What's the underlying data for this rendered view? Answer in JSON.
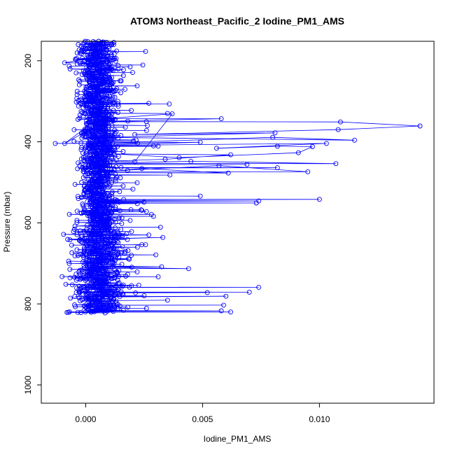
{
  "chart_data": {
    "type": "scatter",
    "title": "ATOM3 Northeast_Pacific_2 Iodine_PM1_AMS",
    "xlabel": "Iodine_PM1_AMS",
    "ylabel": "Pressure (mbar)",
    "xlim": [
      -0.0019,
      0.0149
    ],
    "ylim": [
      1045,
      152
    ],
    "y_reversed": true,
    "x_ticks": [
      0.0,
      0.005,
      0.01
    ],
    "x_tick_labels": [
      "0.000",
      "0.005",
      "0.010"
    ],
    "y_ticks": [
      200,
      400,
      600,
      800,
      1000
    ],
    "y_tick_labels": [
      "200",
      "400",
      "600",
      "800",
      "1000"
    ],
    "grid": false,
    "marker": "open-circle",
    "connected": true,
    "colors": {
      "series": "#0000ff",
      "axis": "#000000"
    },
    "series": [
      {
        "x": [
          0.0001,
          0.0003,
          -0.0009,
          0.0006,
          0.0012,
          0.0019,
          0.0002,
          0.0008,
          0.0003,
          0.0022,
          0.0015,
          0.0004,
          -0.0004,
          0.0027,
          0.0008,
          0.0035,
          0.0002,
          0.0009,
          0.0018,
          0.0001,
          0.0004,
          0.0026,
          0.0011,
          -0.0005,
          0.0007,
          0.0029,
          0.0003,
          0.0016,
          0.0006,
          0.0021,
          0.0037,
          0.0005,
          -0.0009,
          0.001,
          0.0058,
          0.0003,
          0.0109,
          0.0143,
          0.0108,
          0.0021,
          0.0081,
          0.0007,
          0.0115,
          0.008,
          0.0004,
          -0.0013,
          0.0049,
          0.0002,
          0.0103,
          0.0056,
          0.0082,
          0.0097,
          0.0091,
          0.004,
          0.0012,
          0.0062,
          0.0034,
          0.0107,
          0.0045,
          0.0069,
          0.0082,
          0.0095,
          0.0057,
          0.0061,
          0.0024,
          0.0036,
          0.0005,
          0.0022,
          0.0016,
          0.0007,
          0.0049,
          0.01,
          0.0074,
          0.0073,
          0.0004,
          0.0024,
          0.0011,
          -0.0007,
          0.0029,
          0.0003,
          0.0019,
          0.0009,
          0.0032,
          0.0006,
          0.0027,
          0.0002,
          0.0033,
          0.0012,
          -0.0006,
          0.0024,
          0.0008,
          0.0017,
          0.0004,
          0.003,
          0.0011,
          0.0044,
          0.0003,
          0.0022,
          0.0009,
          0.0031,
          0.0005,
          0.0074,
          0.0014,
          0.007,
          0.0007,
          0.0052,
          0.0016,
          0.0025,
          0.0004,
          0.006,
          0.0012,
          0.0035,
          0.0006,
          0.0059,
          0.0018,
          0.0026,
          0.001,
          0.0058,
          0.0003,
          0.0062,
          -0.0008
        ],
        "y": [
          150,
          162,
          205,
          190,
          196,
          215,
          232,
          241,
          258,
          262,
          279,
          291,
          302,
          305,
          318,
          330,
          338,
          342,
          349,
          355,
          368,
          372,
          385,
          399,
          402,
          410,
          415,
          424,
          436,
          449,
          331,
          344,
          404,
          343,
          343,
          350,
          351,
          361,
          370,
          382,
          378,
          389,
          396,
          389,
          404,
          404,
          401,
          409,
          404,
          416,
          411,
          412,
          427,
          439,
          430,
          432,
          443,
          454,
          448,
          456,
          464,
          474,
          459,
          477,
          466,
          482,
          483,
          501,
          509,
          512,
          534,
          542,
          546,
          551,
          560,
          569,
          573,
          579,
          584,
          589,
          594,
          609,
          611,
          626,
          630,
          641,
          636,
          648,
          655,
          654,
          662,
          670,
          675,
          679,
          690,
          713,
          709,
          721,
          726,
          733,
          741,
          759,
          764,
          771,
          771,
          772,
          777,
          780,
          782,
          781,
          789,
          791,
          792,
          803,
          808,
          811,
          813,
          817,
          818,
          820,
          821
        ]
      }
    ],
    "noise_seed": 3
  }
}
